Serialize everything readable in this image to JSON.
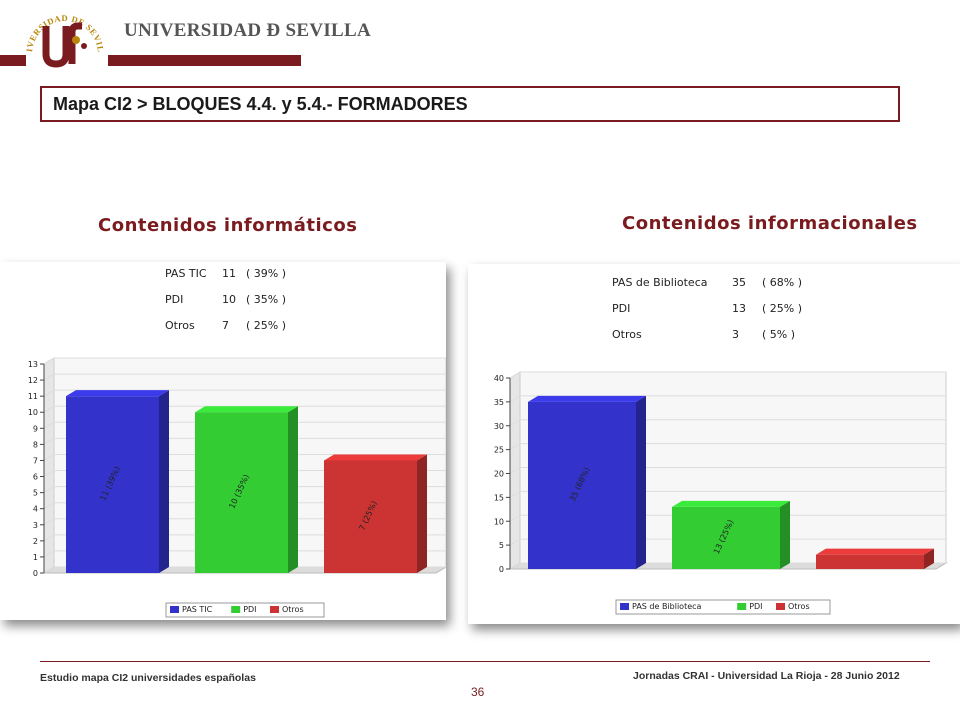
{
  "header": {
    "university_name": "UNIVERSIDAD Ð SEVILLA",
    "seal_text": "UNIVERSIDAD DE SEVILLA",
    "brand_color": "#7a1c1f"
  },
  "slide": {
    "title": "Mapa CI2 > BLOQUES 4.4. y 5.4.- FORMADORES"
  },
  "chart_data": [
    {
      "type": "bar",
      "heading": "Contenidos informáticos",
      "categories": [
        "PAS TIC",
        "PDI",
        "Otros"
      ],
      "values": [
        11,
        10,
        7
      ],
      "percents": [
        "39%",
        "35%",
        "25%"
      ],
      "summary_rows": [
        {
          "label": "PAS TIC",
          "value": "11",
          "pct": "( 39% )"
        },
        {
          "label": "PDI",
          "value": "10",
          "pct": "( 35% )"
        },
        {
          "label": "Otros",
          "value": "7",
          "pct": "( 25% )"
        }
      ],
      "bar_labels": [
        "11 (39%)",
        "10 (35%)",
        "7 (25%)"
      ],
      "legend": [
        "PAS TIC",
        "PDI",
        "Otros"
      ],
      "colors": [
        "#3333cc",
        "#33cc33",
        "#cc3333"
      ],
      "ylim": [
        0,
        13
      ],
      "yticks": [
        0,
        1,
        2,
        3,
        4,
        5,
        6,
        7,
        8,
        9,
        10,
        11,
        12,
        13
      ],
      "grid": true,
      "legend_position": "bottom"
    },
    {
      "type": "bar",
      "heading": "Contenidos informacionales",
      "categories": [
        "PAS de Biblioteca",
        "PDI",
        "Otros"
      ],
      "values": [
        35,
        13,
        3
      ],
      "percents": [
        "68%",
        "25%",
        "5%"
      ],
      "summary_rows": [
        {
          "label": "PAS de Biblioteca",
          "value": "35",
          "pct": "( 68% )"
        },
        {
          "label": "PDI",
          "value": "13",
          "pct": "( 25% )"
        },
        {
          "label": "Otros",
          "value": "3",
          "pct": "( 5% )"
        }
      ],
      "bar_labels": [
        "35 (68%)",
        "13 (25%)",
        ""
      ],
      "legend": [
        "PAS de Biblioteca",
        "PDI",
        "Otros"
      ],
      "colors": [
        "#3333cc",
        "#33cc33",
        "#cc3333"
      ],
      "ylim": [
        0,
        40
      ],
      "yticks": [
        0,
        5,
        10,
        15,
        20,
        25,
        30,
        35,
        40
      ],
      "grid": true,
      "legend_position": "bottom"
    }
  ],
  "footer": {
    "left": "Estudio mapa CI2 universidades españolas",
    "right": "Jornadas CRAI - Universidad La Rioja - 28 Junio 2012",
    "page": "36"
  }
}
